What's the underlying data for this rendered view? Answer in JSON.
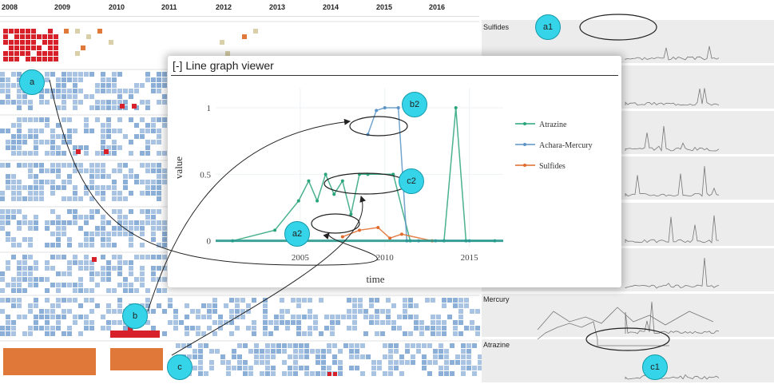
{
  "timeline": {
    "years": [
      "2008",
      "2009",
      "2010",
      "2011",
      "2012",
      "2013",
      "2014",
      "2015",
      "2016"
    ]
  },
  "sparklines": {
    "labels": [
      {
        "id": "sulfides",
        "text": "Sulfides"
      },
      {
        "id": "mercury",
        "text": "Mercury"
      },
      {
        "id": "atrazine",
        "text": "Atrazine"
      }
    ]
  },
  "viewer": {
    "title": "[-] Line graph viewer",
    "chart_data": {
      "type": "line",
      "xlabel": "time",
      "ylabel": "value",
      "xlim": [
        2000,
        2017
      ],
      "ylim": [
        -0.05,
        1.15
      ],
      "x_ticks": [
        2005,
        2010,
        2015
      ],
      "y_ticks": [
        0,
        0.5,
        1
      ],
      "legend_position": "right",
      "series": [
        {
          "name": "Atrazine",
          "color": "#2aa57a",
          "x": [
            2001,
            2003.5,
            2004.9,
            2005.5,
            2006,
            2006.5,
            2007,
            2007.5,
            2008,
            2008.5,
            2009,
            2010.5,
            2011.5,
            2013.5,
            2014.2,
            2014.8,
            2016.5
          ],
          "y": [
            0,
            0.08,
            0.3,
            0.45,
            0.3,
            0.5,
            0.35,
            0.45,
            0.2,
            0.5,
            0.5,
            0.5,
            0,
            0,
            1,
            0,
            0
          ]
        },
        {
          "name": "Achara-Mercury",
          "color": "#5b94c6",
          "x": [
            2009,
            2009.5,
            2010,
            2010.8,
            2011.3,
            2012,
            2013,
            2015
          ],
          "y": [
            0.8,
            0.98,
            1,
            1,
            0,
            0,
            0,
            0
          ]
        },
        {
          "name": "Sulfides",
          "color": "#e06a2a",
          "x": [
            2007.5,
            2008.5,
            2009.6,
            2010.3,
            2011,
            2012.8
          ],
          "y": [
            0.03,
            0.08,
            0.1,
            0.02,
            0.05,
            0
          ]
        }
      ]
    }
  },
  "callouts": [
    {
      "id": "a",
      "label": "a"
    },
    {
      "id": "b",
      "label": "b"
    },
    {
      "id": "c",
      "label": "c"
    },
    {
      "id": "a1",
      "label": "a1"
    },
    {
      "id": "c1",
      "label": "c1"
    },
    {
      "id": "a2",
      "label": "a2"
    },
    {
      "id": "b2",
      "label": "b2"
    },
    {
      "id": "c2",
      "label": "c2"
    }
  ],
  "colors": {
    "cell_light": "#a9c4e2",
    "cell_dark": "#8bafd6",
    "cell_red": "#d8202a",
    "cell_orange": "#e0783a",
    "cell_tan": "#d9cfa8",
    "sparkline_bg": "#ececec",
    "callout": "#35d4e8"
  }
}
